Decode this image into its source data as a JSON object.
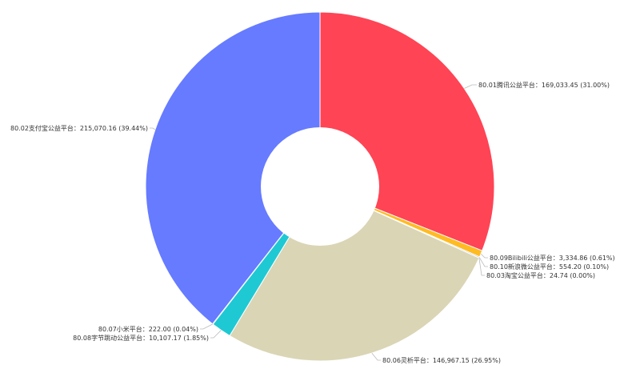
{
  "chart_data": {
    "type": "pie",
    "title": "",
    "legend": "none",
    "slices": [
      {
        "name": "80.01腾讯公益平台",
        "value": 169033.45,
        "percent": 31.0,
        "label": "80.01腾讯公益平台：169,033.45 (31.00%)",
        "color": "#ff4455"
      },
      {
        "name": "80.09Bilibili公益平台",
        "value": 3334.86,
        "percent": 0.61,
        "label": "80.09Bilibili公益平台：3,334.86 (0.61%)",
        "color": "#ffbb22"
      },
      {
        "name": "80.10新浪微公益平台",
        "value": 554.2,
        "percent": 0.1,
        "label": "80.10新浪微公益平台：554.20 (0.10%)",
        "color": "#8899cc"
      },
      {
        "name": "80.03淘宝公益平台",
        "value": 24.74,
        "percent": 0.0,
        "label": "80.03淘宝公益平台：24.74 (0.00%)",
        "color": "#ff7744"
      },
      {
        "name": "80.06灵析平台",
        "value": 146967.15,
        "percent": 26.95,
        "label": "80.06灵析平台：146,967.15 (26.95%)",
        "color": "#dad5b5"
      },
      {
        "name": "80.08字节跳动公益平台",
        "value": 10107.17,
        "percent": 1.85,
        "label": "80.08字节跳动公益平台：10,107.17 (1.85%)",
        "color": "#1ec9d4"
      },
      {
        "name": "80.07小米平台",
        "value": 222.0,
        "percent": 0.04,
        "label": "80.07小米平台：222.00 (0.04%)",
        "color": "#ff9933"
      },
      {
        "name": "80.02支付宝公益平台",
        "value": 215070.16,
        "percent": 39.44,
        "label": "80.02支付宝公益平台：215,070.16 (39.44%)",
        "color": "#667bff"
      }
    ]
  }
}
